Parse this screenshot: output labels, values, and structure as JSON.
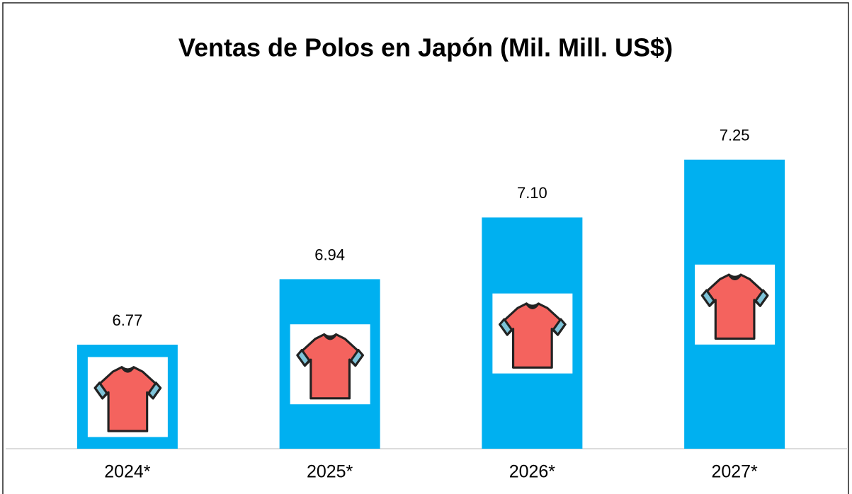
{
  "chart_data": {
    "type": "bar",
    "title": "Ventas de Polos en Japón (Mil. Mill. US$)",
    "categories": [
      "2024*",
      "2025*",
      "2026*",
      "2027*"
    ],
    "values": [
      6.77,
      6.94,
      7.1,
      7.25
    ],
    "value_labels": [
      "6.77",
      "6.94",
      "7.10",
      "7.25"
    ],
    "color": "#00b0f0",
    "ylim": [
      6.5,
      7.4
    ]
  }
}
